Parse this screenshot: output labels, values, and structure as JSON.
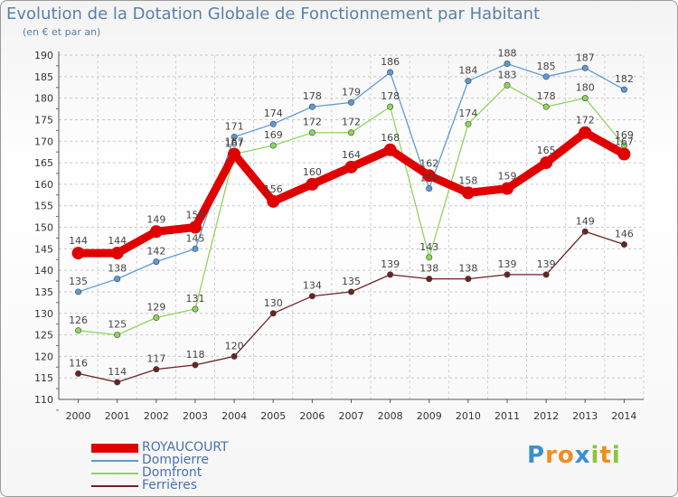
{
  "header": {
    "title": "Evolution de la Dotation Globale de Fonctionnement par Habitant",
    "subtitle": "(en € et par an)"
  },
  "logo": {
    "letters": [
      "P",
      "r",
      "o",
      "x",
      "i",
      "t",
      "i"
    ],
    "colors": [
      "#3a8fd0",
      "#f08c1e",
      "#f08c1e",
      "#3a8fd0",
      "#8cc43c",
      "#f08c1e",
      "#8cc43c"
    ]
  },
  "chart_data": {
    "type": "line",
    "title": "Evolution de la Dotation Globale de Fonctionnement par Habitant",
    "subtitle": "(en € et par an)",
    "xlabel": "",
    "ylabel": "",
    "ylim": [
      110,
      190
    ],
    "yticks": [
      110,
      115,
      120,
      125,
      130,
      135,
      140,
      145,
      150,
      155,
      160,
      165,
      170,
      175,
      180,
      185,
      190
    ],
    "grid": true,
    "legend_position": "bottom-left",
    "categories": [
      "2000",
      "2001",
      "2002",
      "2003",
      "2004",
      "2005",
      "2006",
      "2007",
      "2008",
      "2009",
      "2010",
      "2011",
      "2012",
      "2013",
      "2014"
    ],
    "series": [
      {
        "name": "ROYAUCOURT",
        "color": "#e00000",
        "style": "thick",
        "values": [
          144,
          144,
          149,
          150,
          167,
          156,
          160,
          164,
          168,
          162,
          158,
          159,
          165,
          172,
          167
        ],
        "labels": [
          "144",
          "144",
          "149",
          "150",
          "167",
          "156",
          "160",
          "164",
          "168",
          "162",
          "158",
          "159",
          "165",
          "172",
          "167"
        ]
      },
      {
        "name": "Dompierre",
        "color": "#5b9bd5",
        "style": "thin",
        "values": [
          135,
          138,
          142,
          145,
          171,
          174,
          178,
          179,
          186,
          159,
          184,
          188,
          185,
          187,
          182
        ],
        "labels": [
          "135",
          "138",
          "142",
          "145",
          "171",
          "174",
          "178",
          "179",
          "186",
          "159",
          "184",
          "188",
          "185",
          "187",
          "182"
        ]
      },
      {
        "name": "Domfront",
        "color": "#8ed65a",
        "style": "thin",
        "values": [
          126,
          125,
          129,
          131,
          167,
          169,
          172,
          172,
          178,
          143,
          174,
          183,
          178,
          180,
          169
        ],
        "labels": [
          "126",
          "125",
          "129",
          "131",
          "167",
          "169",
          "172",
          "172",
          "178",
          "143",
          "174",
          "183",
          "178",
          "180",
          "169"
        ]
      },
      {
        "name": "Ferrières",
        "color": "#6b2222",
        "style": "thin",
        "values": [
          116,
          114,
          117,
          118,
          120,
          130,
          134,
          135,
          139,
          138,
          138,
          139,
          139,
          149,
          146
        ],
        "labels": [
          "116",
          "114",
          "117",
          "118",
          "120",
          "130",
          "134",
          "135",
          "139",
          "138",
          "138",
          "139",
          "139",
          "149",
          "146"
        ]
      }
    ]
  }
}
